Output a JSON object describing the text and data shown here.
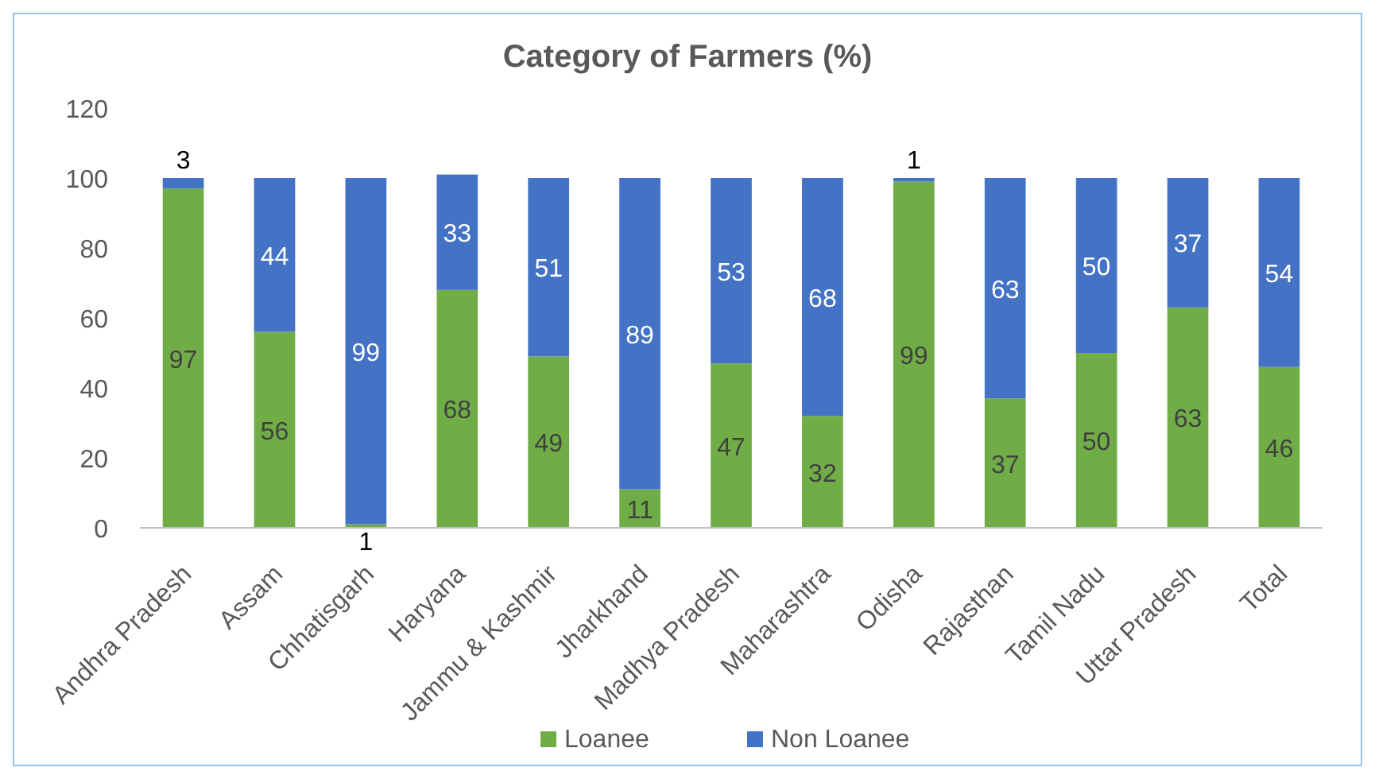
{
  "chart_data": {
    "type": "bar",
    "title": "Category of Farmers (%)",
    "stacked": true,
    "data_labels": true,
    "legend": "bottom",
    "grid": false,
    "categories": [
      "Andhra Pradesh",
      "Assam",
      "Chhatisgarh",
      "Haryana",
      "Jammu & Kashmir",
      "Jharkhand",
      "Madhya Pradesh",
      "Maharashtra",
      "Odisha",
      "Rajasthan",
      "Tamil Nadu",
      "Uttar Pradesh",
      "Total"
    ],
    "series": [
      {
        "name": "Loanee",
        "color": "#70ad47",
        "values": [
          97,
          56,
          1,
          68,
          49,
          11,
          47,
          32,
          99,
          37,
          50,
          63,
          46
        ]
      },
      {
        "name": "Non Loanee",
        "color": "#4472c4",
        "values": [
          3,
          44,
          99,
          33,
          51,
          89,
          53,
          68,
          1,
          63,
          50,
          37,
          54
        ]
      }
    ],
    "ylim": [
      0,
      120
    ],
    "yticks": [
      0,
      20,
      40,
      60,
      80,
      100,
      120
    ]
  }
}
